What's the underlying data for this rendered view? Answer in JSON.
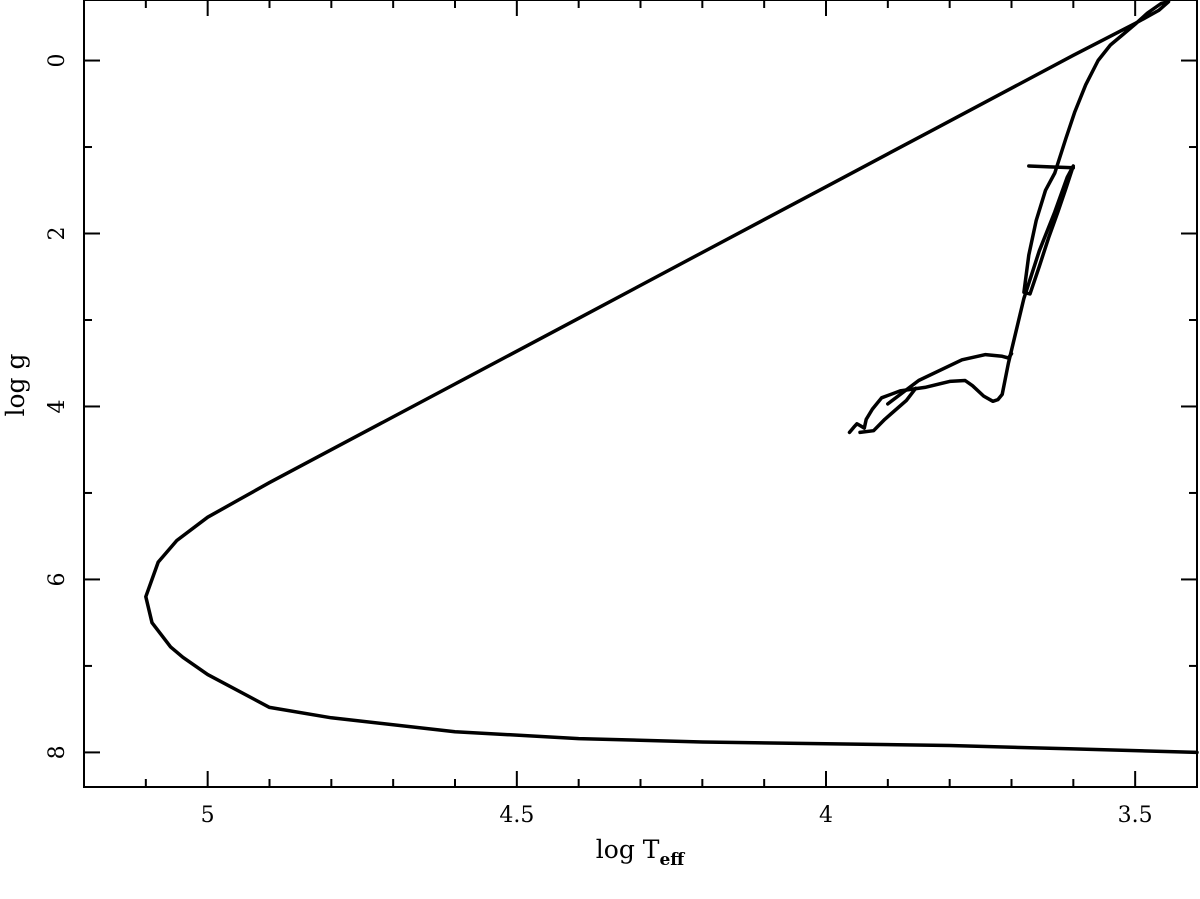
{
  "chart_data": {
    "type": "line",
    "title": "",
    "xlabel": "log T",
    "xlabel_subscript": "eff",
    "ylabel": "log g",
    "xlim": [
      5.2,
      3.4
    ],
    "ylim": [
      -0.7,
      8.4
    ],
    "x_reversed": true,
    "y_reversed": true,
    "grid": false,
    "legend": "none",
    "x_major_ticks": [
      5,
      4.5,
      4,
      3.5
    ],
    "x_tick_labels": [
      "5",
      "4.5",
      "4",
      "3.5"
    ],
    "x_minor_step": 0.1,
    "y_major_ticks": [
      0,
      2,
      4,
      6,
      8
    ],
    "y_tick_labels": [
      "0",
      "2",
      "4",
      "6",
      "8"
    ],
    "y_minor_step": 1,
    "line_color": "#000000",
    "series": [
      {
        "x": [
          3.962,
          3.955,
          3.95,
          3.945,
          3.938,
          3.935,
          3.925,
          3.91,
          3.88,
          3.84,
          3.8,
          3.775,
          3.763,
          3.745,
          3.73,
          3.722,
          3.715,
          3.705,
          3.695,
          3.68,
          3.655,
          3.63,
          3.61,
          3.6,
          3.612,
          3.625,
          3.64,
          3.655,
          3.67,
          3.68,
          3.672,
          3.66,
          3.645,
          3.63,
          3.612,
          3.598,
          3.58,
          3.56,
          3.54,
          3.52,
          3.5,
          3.48,
          3.458,
          3.446,
          3.462,
          3.5,
          3.6,
          3.7,
          3.8,
          3.9,
          4.0,
          4.2,
          4.4,
          4.6,
          4.8,
          4.9,
          4.95,
          5.0,
          5.05,
          5.08,
          5.1,
          5.09,
          5.06,
          5.04,
          5.0,
          4.9,
          4.8,
          4.6,
          4.4,
          4.2,
          4.0,
          3.8,
          3.6,
          3.4
        ],
        "y": [
          4.3,
          4.24,
          4.2,
          4.22,
          4.25,
          4.15,
          4.03,
          3.9,
          3.82,
          3.78,
          3.71,
          3.7,
          3.76,
          3.88,
          3.94,
          3.92,
          3.86,
          3.5,
          3.2,
          2.75,
          2.2,
          1.75,
          1.35,
          1.22,
          1.48,
          1.75,
          2.05,
          2.38,
          2.7,
          2.68,
          2.25,
          1.85,
          1.5,
          1.3,
          0.9,
          0.6,
          0.28,
          0.0,
          -0.18,
          -0.3,
          -0.42,
          -0.55,
          -0.66,
          -0.68,
          -0.58,
          -0.43,
          -0.06,
          0.32,
          0.7,
          1.08,
          1.46,
          2.22,
          2.98,
          3.74,
          4.5,
          4.88,
          5.08,
          5.28,
          5.55,
          5.8,
          6.2,
          6.5,
          6.78,
          6.9,
          7.1,
          7.48,
          7.6,
          7.76,
          7.84,
          7.88,
          7.9,
          7.92,
          7.96,
          8.0
        ]
      },
      {
        "x": [
          3.672,
          3.638,
          3.6
        ],
        "y": [
          1.22,
          1.23,
          1.24
        ]
      },
      {
        "x": [
          3.9,
          3.85,
          3.78,
          3.742,
          3.715,
          3.705,
          3.7
        ],
        "y": [
          3.97,
          3.7,
          3.46,
          3.4,
          3.42,
          3.44,
          3.39
        ]
      },
      {
        "x": [
          3.945,
          3.923,
          3.905,
          3.87,
          3.855
        ],
        "y": [
          4.3,
          4.28,
          4.15,
          3.93,
          3.79
        ]
      }
    ]
  }
}
